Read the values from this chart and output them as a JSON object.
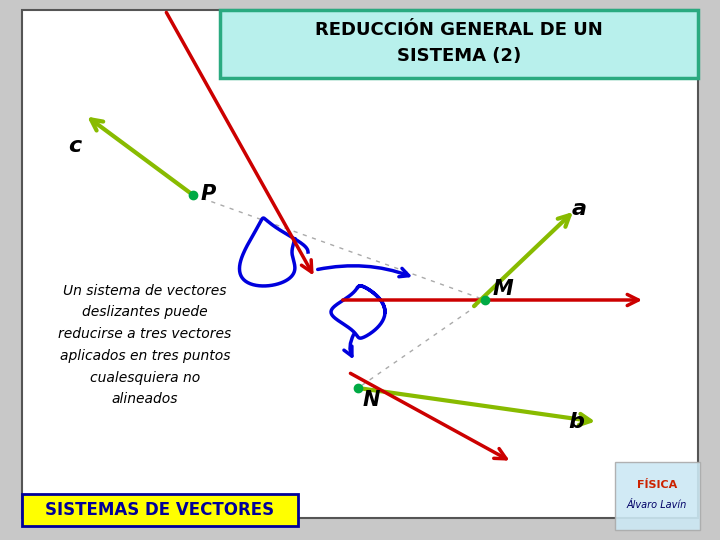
{
  "title_line1": "REDUCCIÓN GENERAL DE UN",
  "title_line2": "SISTEMA (2)",
  "title_bg": "#b8f0ec",
  "title_border": "#2aaa80",
  "bg_color": "#ffffff",
  "outer_bg": "#c8c8c8",
  "inner_border": "#555555",
  "bottom_banner_text": "SISTEMAS DE VECTORES",
  "bottom_banner_bg": "#ffff00",
  "bottom_banner_fg": "#000099",
  "body_text": "Un sistema de vectores\ndeslizantes puede\nreducirse a tres vectores\naplicados en tres puntos\ncualesquiera no\nalineados",
  "label_P": "P",
  "label_M": "M",
  "label_N": "N",
  "label_a": "a",
  "label_b": "b",
  "label_c": "c",
  "green_color": "#88bb00",
  "red_color": "#cc0000",
  "blue_color": "#0000dd",
  "dot_color": "#00aa44",
  "gray_color": "#999999"
}
